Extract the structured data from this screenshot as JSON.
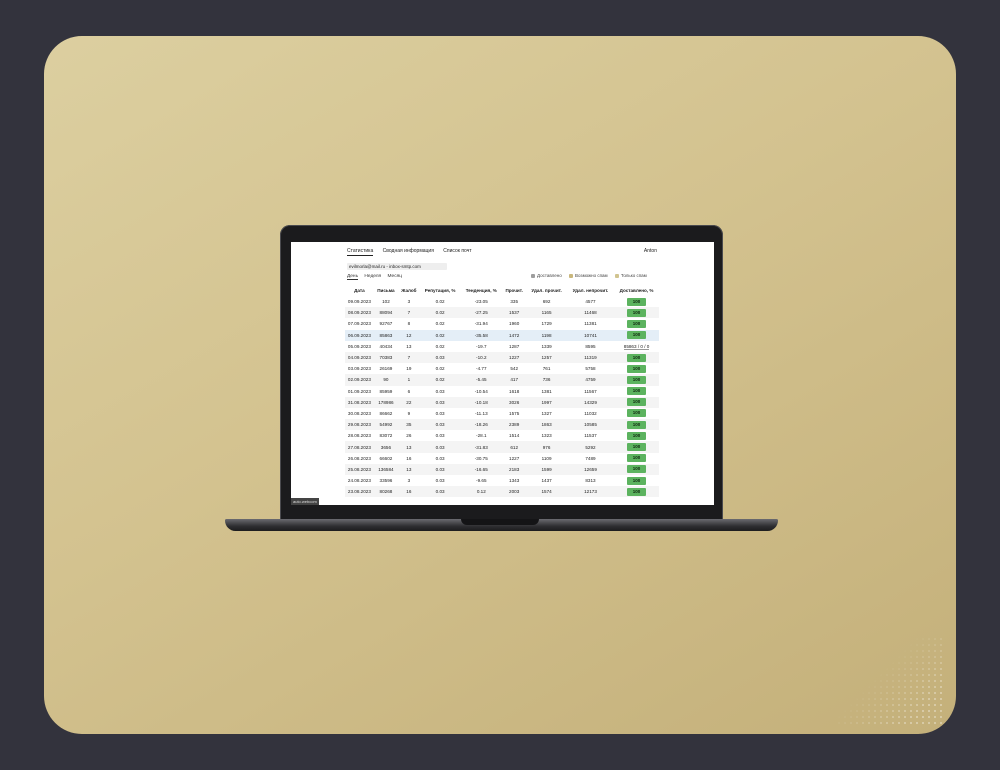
{
  "app": {
    "nav": [
      "Статистика",
      "Сводная информация",
      "Список почт"
    ],
    "active_nav": 0,
    "user": "Anton",
    "account_selector": "evilmorla@mail.ru - inbox-smtp.com",
    "periods": [
      "День",
      "Неделя",
      "Месяц"
    ],
    "legend": [
      {
        "label": "Доставлено",
        "color": "#9e9e9e"
      },
      {
        "label": "Возможно спам",
        "color": "#c9b77d"
      },
      {
        "label": "Только спам",
        "color": "#d1c490"
      }
    ],
    "watermark": "auto.webcom"
  },
  "table": {
    "headers": [
      "Дата",
      "Письма",
      "Жалоб",
      "Репутация, %",
      "Тенденция, %",
      "Прочит.",
      "Удал. прочит.",
      "Удал. непрочит.",
      "Доставлено, %"
    ],
    "rows": [
      [
        "09.09.2023",
        "102",
        "3",
        "0.02",
        "-23.05",
        "335",
        "692",
        "4577",
        "100"
      ],
      [
        "08.09.2023",
        "88094",
        "7",
        "0.02",
        "-27.25",
        "1537",
        "1165",
        "11468",
        "100"
      ],
      [
        "07.09.2023",
        "92767",
        "8",
        "0.02",
        "-31.94",
        "1960",
        "1729",
        "11381",
        "100"
      ],
      [
        "06.09.2023",
        "85863",
        "12",
        "0.02",
        "-35.58",
        "1472",
        "1198",
        "10741",
        "100"
      ],
      [
        "05.09.2023",
        "40434",
        "13",
        "0.02",
        "-19.7",
        "1287",
        "1339",
        "8595",
        "85863 / 0 / 0"
      ],
      [
        "04.09.2023",
        "70383",
        "7",
        "0.03",
        "-10.2",
        "1227",
        "1257",
        "11319",
        "100"
      ],
      [
        "03.09.2023",
        "26169",
        "19",
        "0.02",
        "-4.77",
        "542",
        "761",
        "5758",
        "100"
      ],
      [
        "02.09.2023",
        "90",
        "1",
        "0.02",
        "-5.45",
        "417",
        "736",
        "4759",
        "100"
      ],
      [
        "01.09.2023",
        "85959",
        "6",
        "0.03",
        "-10.54",
        "1618",
        "1381",
        "11567",
        "100"
      ],
      [
        "31.08.2023",
        "178986",
        "22",
        "0.03",
        "-10.18",
        "3026",
        "1997",
        "14329",
        "100"
      ],
      [
        "30.08.2023",
        "86662",
        "9",
        "0.03",
        "-11.13",
        "1575",
        "1327",
        "11032",
        "100"
      ],
      [
        "29.08.2023",
        "54992",
        "35",
        "0.03",
        "-18.26",
        "2389",
        "1863",
        "10585",
        "100"
      ],
      [
        "28.08.2023",
        "83072",
        "26",
        "0.03",
        "-28.1",
        "1514",
        "1323",
        "11537",
        "100"
      ],
      [
        "27.08.2023",
        "3656",
        "13",
        "0.03",
        "-31.83",
        "612",
        "976",
        "5292",
        "100"
      ],
      [
        "26.08.2023",
        "66602",
        "16",
        "0.03",
        "-30.75",
        "1227",
        "1109",
        "7489",
        "100"
      ],
      [
        "25.08.2023",
        "136584",
        "13",
        "0.03",
        "-16.65",
        "2183",
        "1599",
        "12659",
        "100"
      ],
      [
        "24.08.2023",
        "33596",
        "3",
        "0.03",
        "-9.65",
        "1343",
        "1437",
        "8313",
        "100"
      ],
      [
        "23.08.2023",
        "80268",
        "16",
        "0.03",
        "0.12",
        "2003",
        "1574",
        "12173",
        "100"
      ]
    ],
    "highlight_row": 3,
    "badge_color": "#5cb35f"
  }
}
